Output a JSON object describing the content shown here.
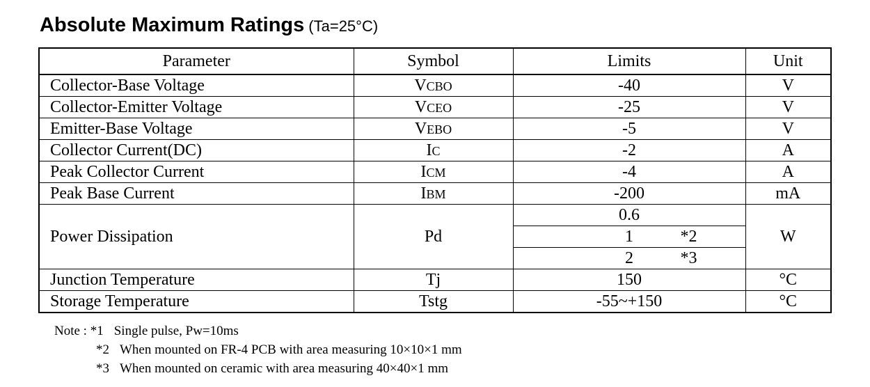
{
  "title": {
    "main": "Absolute Maximum Ratings",
    "condition": "(Ta=25°C)"
  },
  "table": {
    "headers": {
      "parameter": "Parameter",
      "symbol": "Symbol",
      "limits": "Limits",
      "unit": "Unit"
    },
    "rows": [
      {
        "parameter": "Collector-Base Voltage",
        "symbol_main": "V",
        "symbol_sub": "CBO",
        "limit": "-40",
        "unit": "V"
      },
      {
        "parameter": "Collector-Emitter Voltage",
        "symbol_main": "V",
        "symbol_sub": "CEO",
        "limit": "-25",
        "unit": "V"
      },
      {
        "parameter": "Emitter-Base Voltage",
        "symbol_main": "V",
        "symbol_sub": "EBO",
        "limit": "-5",
        "unit": "V"
      },
      {
        "parameter": "Collector Current(DC)",
        "symbol_main": "I",
        "symbol_sub": "C",
        "limit": "-2",
        "unit": "A"
      },
      {
        "parameter": "Peak Collector Current",
        "symbol_main": "I",
        "symbol_sub": "CM",
        "limit": "-4",
        "unit": "A"
      },
      {
        "parameter": "Peak Base Current",
        "symbol_main": "I",
        "symbol_sub": "BM",
        "limit": "-200",
        "unit": "mA"
      }
    ],
    "power": {
      "parameter": "Power Dissipation",
      "symbol": "Pd",
      "unit": "W",
      "limits": [
        {
          "value": "0.6",
          "note": ""
        },
        {
          "value": "1",
          "note": "*2"
        },
        {
          "value": "2",
          "note": "*3"
        }
      ]
    },
    "rows_after": [
      {
        "parameter": "Junction Temperature",
        "symbol": "Tj",
        "limit": "150",
        "unit": "°C"
      },
      {
        "parameter": "Storage Temperature",
        "symbol": "Tstg",
        "limit": "-55~+150",
        "unit": "°C"
      }
    ]
  },
  "notes": {
    "prefix": "Note :",
    "items": [
      {
        "mark": "*1",
        "text": "Single pulse, Pw=10ms"
      },
      {
        "mark": "*2",
        "text": "When mounted on FR-4 PCB with area measuring 10×10×1 mm"
      },
      {
        "mark": "*3",
        "text": "When mounted on ceramic with area measuring 40×40×1 mm"
      }
    ]
  }
}
